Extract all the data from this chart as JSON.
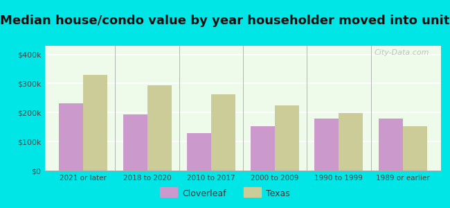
{
  "title": "Median house/condo value by year householder moved into unit",
  "categories": [
    "2021 or later",
    "2018 to 2020",
    "2010 to 2017",
    "2000 to 2009",
    "1990 to 1999",
    "1989 or earlier"
  ],
  "cloverleaf_values": [
    232000,
    193000,
    128000,
    152000,
    180000,
    180000
  ],
  "texas_values": [
    330000,
    295000,
    262000,
    225000,
    198000,
    152000
  ],
  "cloverleaf_color": "#cc99cc",
  "texas_color": "#cccc99",
  "background_outer": "#00e5e5",
  "background_inner": "#eefaea",
  "yticks": [
    0,
    100000,
    200000,
    300000,
    400000
  ],
  "ytick_labels": [
    "$0",
    "$100k",
    "$200k",
    "$300k",
    "$400k"
  ],
  "ylim": [
    0,
    430000
  ],
  "bar_width": 0.38,
  "title_fontsize": 13,
  "legend_labels": [
    "Cloverleaf",
    "Texas"
  ],
  "watermark": "City-Data.com"
}
